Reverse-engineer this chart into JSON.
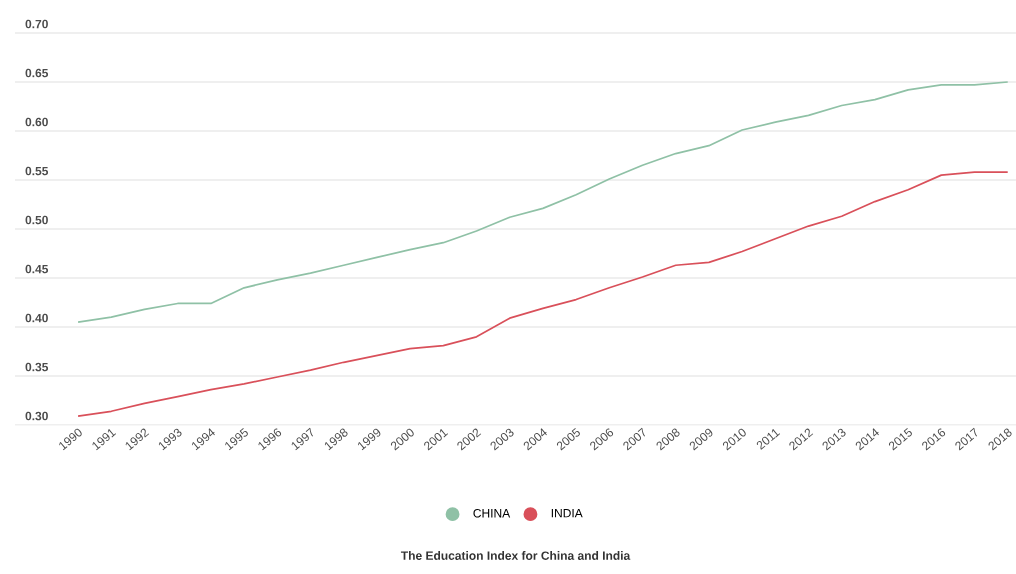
{
  "chart_data": {
    "type": "line",
    "title": "The Education Index for China and India",
    "categories": [
      "1990",
      "1991",
      "1992",
      "1993",
      "1994",
      "1995",
      "1996",
      "1997",
      "1998",
      "1999",
      "2000",
      "2001",
      "2002",
      "2003",
      "2004",
      "2005",
      "2006",
      "2007",
      "2008",
      "2009",
      "2010",
      "2011",
      "2012",
      "2013",
      "2014",
      "2015",
      "2016",
      "2017",
      "2018"
    ],
    "series": [
      {
        "name": "CHINA",
        "color": "#8fc1a6",
        "values": [
          0.405,
          0.41,
          0.418,
          0.424,
          0.424,
          0.44,
          0.448,
          0.455,
          0.463,
          0.471,
          0.479,
          0.486,
          0.498,
          0.512,
          0.521,
          0.535,
          0.551,
          0.565,
          0.577,
          0.585,
          0.601,
          0.609,
          0.616,
          0.626,
          0.632,
          0.642,
          0.647,
          0.647,
          0.65
        ]
      },
      {
        "name": "INDIA",
        "color": "#d9505a",
        "values": [
          0.309,
          0.314,
          0.322,
          0.329,
          0.336,
          0.342,
          0.349,
          0.356,
          0.364,
          0.371,
          0.378,
          0.381,
          0.39,
          0.409,
          0.419,
          0.428,
          0.44,
          0.451,
          0.463,
          0.466,
          0.477,
          0.49,
          0.503,
          0.513,
          0.528,
          0.54,
          0.555,
          0.558,
          0.558
        ]
      }
    ],
    "ylim": [
      0.3,
      0.7
    ],
    "yticks": [
      {
        "value": 0.3,
        "label": "0.30"
      },
      {
        "value": 0.35,
        "label": "0.35"
      },
      {
        "value": 0.4,
        "label": "0.40"
      },
      {
        "value": 0.45,
        "label": "0.45"
      },
      {
        "value": 0.5,
        "label": "0.50"
      },
      {
        "value": 0.55,
        "label": "0.55"
      },
      {
        "value": 0.6,
        "label": "0.60"
      },
      {
        "value": 0.65,
        "label": "0.65"
      },
      {
        "value": 0.7,
        "label": "0.70"
      }
    ],
    "grid": "y",
    "legend": "bottom",
    "marker": "none",
    "line_style": "solid"
  }
}
